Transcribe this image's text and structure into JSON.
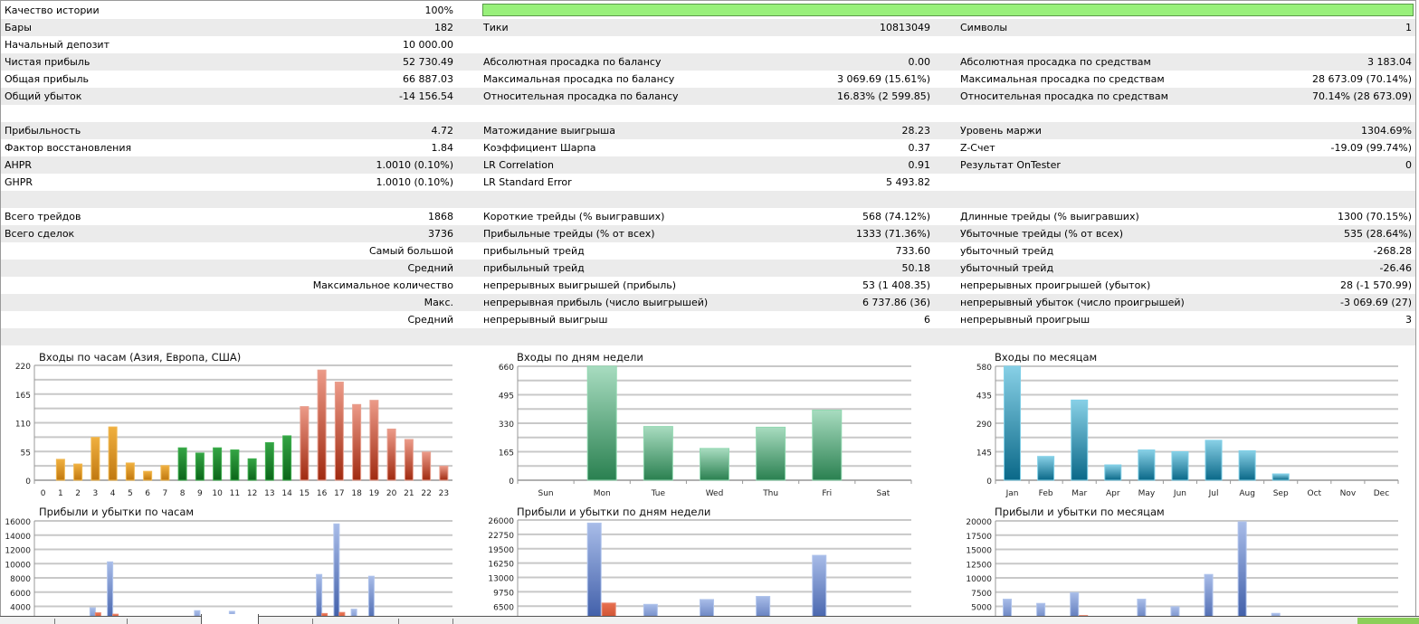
{
  "summary": {
    "history_quality_percent": 100,
    "rows": [
      {
        "l1": "Качество истории",
        "v1": "100%",
        "l2": "",
        "v2": "",
        "l3": "",
        "v3": ""
      },
      {
        "l1": "Бары",
        "v1": "182",
        "l2": "Тики",
        "v2": "10813049",
        "l3": "Символы",
        "v3": "1"
      },
      {
        "l1": "Начальный депозит",
        "v1": "10 000.00",
        "l2": "",
        "v2": "",
        "l3": "",
        "v3": ""
      },
      {
        "l1": "Чистая прибыль",
        "v1": "52 730.49",
        "l2": "Абсолютная просадка по балансу",
        "v2": "0.00",
        "l3": "Абсолютная просадка по средствам",
        "v3": "3 183.04"
      },
      {
        "l1": "Общая прибыль",
        "v1": "66 887.03",
        "l2": "Максимальная просадка по балансу",
        "v2": "3 069.69 (15.61%)",
        "l3": "Максимальная просадка по средствам",
        "v3": "28 673.09 (70.14%)"
      },
      {
        "l1": "Общий убыток",
        "v1": "-14 156.54",
        "l2": "Относительная просадка по балансу",
        "v2": "16.83% (2 599.85)",
        "l3": "Относительная просадка по средствам",
        "v3": "70.14% (28 673.09)"
      },
      {
        "l1": "",
        "v1": "",
        "l2": "",
        "v2": "",
        "l3": "",
        "v3": ""
      },
      {
        "l1": "Прибыльность",
        "v1": "4.72",
        "l2": "Матожидание выигрыша",
        "v2": "28.23",
        "l3": "Уровень маржи",
        "v3": "1304.69%"
      },
      {
        "l1": "Фактор восстановления",
        "v1": "1.84",
        "l2": "Коэффициент Шарпа",
        "v2": "0.37",
        "l3": "Z-Счет",
        "v3": "-19.09 (99.74%)"
      },
      {
        "l1": "AHPR",
        "v1": "1.0010 (0.10%)",
        "l2": "LR Correlation",
        "v2": "0.91",
        "l3": "Результат OnTester",
        "v3": "0"
      },
      {
        "l1": "GHPR",
        "v1": "1.0010 (0.10%)",
        "l2": "LR Standard Error",
        "v2": "5 493.82",
        "l3": "",
        "v3": ""
      },
      {
        "l1": "",
        "v1": "",
        "l2": "",
        "v2": "",
        "l3": "",
        "v3": ""
      },
      {
        "l1": "Всего трейдов",
        "v1": "1868",
        "l2": "Короткие трейды (% выигравших)",
        "v2": "568 (74.12%)",
        "l3": "Длинные трейды (% выигравших)",
        "v3": "1300 (70.15%)"
      },
      {
        "l1": "Всего сделок",
        "v1": "3736",
        "l2": "Прибыльные трейды (% от всех)",
        "v2": "1333 (71.36%)",
        "l3": "Убыточные трейды (% от всех)",
        "v3": "535 (28.64%)"
      },
      {
        "l1": "",
        "v1": "Самый большой",
        "l2": "прибыльный трейд",
        "v2": "733.60",
        "l3": "убыточный трейд",
        "v3": "-268.28"
      },
      {
        "l1": "",
        "v1": "Средний",
        "l2": "прибыльный трейд",
        "v2": "50.18",
        "l3": "убыточный трейд",
        "v3": "-26.46"
      },
      {
        "l1": "",
        "v1": "Максимальное количество",
        "l2": "непрерывных выигрышей (прибыль)",
        "v2": "53 (1 408.35)",
        "l3": "непрерывных проигрышей (убыток)",
        "v3": "28 (-1 570.99)"
      },
      {
        "l1": "",
        "v1": "Макс.",
        "l2": "непрерывная прибыль (число выигрышей)",
        "v2": "6 737.86 (36)",
        "l3": "непрерывный убыток (число проигрышей)",
        "v3": "-3 069.69 (27)"
      },
      {
        "l1": "",
        "v1": "Средний",
        "l2": "непрерывный выигрыш",
        "v2": "6",
        "l3": "непрерывный проигрыш",
        "v3": "3"
      },
      {
        "l1": "",
        "v1": "",
        "l2": "",
        "v2": "",
        "l3": "",
        "v3": ""
      }
    ]
  },
  "colors": {
    "quality_bar": "#98f07a",
    "profit": "#4a6ab8",
    "loss": "#c84020",
    "asia": "#e0a030",
    "europe": "#208a30",
    "usa": "#c04a30",
    "days": "#4aa070",
    "months": "#2a8aa8"
  },
  "chart_data": [
    {
      "type": "bar",
      "title": "Входы по часам (Азия, Европа, США)",
      "categories": [
        "0",
        "1",
        "2",
        "3",
        "4",
        "5",
        "6",
        "7",
        "8",
        "9",
        "10",
        "11",
        "12",
        "13",
        "14",
        "15",
        "16",
        "17",
        "18",
        "19",
        "20",
        "21",
        "22",
        "23"
      ],
      "values": [
        0,
        40,
        31,
        82,
        102,
        33,
        17,
        28,
        62,
        52,
        62,
        58,
        41,
        72,
        85,
        141,
        211,
        188,
        145,
        153,
        98,
        78,
        54,
        27
      ],
      "groups": [
        "asia",
        "asia",
        "asia",
        "asia",
        "asia",
        "asia",
        "asia",
        "asia",
        "europe",
        "europe",
        "europe",
        "europe",
        "europe",
        "europe",
        "europe",
        "usa",
        "usa",
        "usa",
        "usa",
        "usa",
        "usa",
        "usa",
        "usa",
        "usa"
      ],
      "yticks": [
        "0",
        "55",
        "110",
        "165",
        "220"
      ],
      "ylim": [
        0,
        220
      ],
      "grid": true
    },
    {
      "type": "bar",
      "title": "Входы по дням недели",
      "categories": [
        "Sun",
        "Mon",
        "Tue",
        "Wed",
        "Thu",
        "Fri",
        "Sat"
      ],
      "values": [
        0,
        660,
        311,
        184,
        307,
        406,
        0
      ],
      "yticks": [
        "0",
        "165",
        "330",
        "495",
        "660"
      ],
      "ylim": [
        0,
        660
      ],
      "grid": true
    },
    {
      "type": "bar",
      "title": "Входы по месяцам",
      "categories": [
        "Jan",
        "Feb",
        "Mar",
        "Apr",
        "May",
        "Jun",
        "Jul",
        "Aug",
        "Sep",
        "Oct",
        "Nov",
        "Dec"
      ],
      "values": [
        580,
        121,
        408,
        78,
        154,
        145,
        203,
        150,
        32,
        0,
        0,
        0
      ],
      "yticks": [
        "0",
        "145",
        "290",
        "435",
        "580"
      ],
      "ylim": [
        0,
        580
      ],
      "grid": true
    },
    {
      "type": "bar",
      "title": "Прибыли и убытки по часам",
      "categories": [
        "0",
        "1",
        "2",
        "3",
        "4",
        "5",
        "6",
        "7",
        "8",
        "9",
        "10",
        "11",
        "12",
        "13",
        "14",
        "15",
        "16",
        "17",
        "18",
        "19",
        "20",
        "21",
        "22",
        "23"
      ],
      "series": [
        {
          "values": [
            null,
            null,
            null,
            3800,
            10250,
            null,
            null,
            null,
            null,
            3400,
            null,
            3300,
            null,
            null,
            null,
            null,
            8480,
            15580,
            3600,
            8230,
            null,
            null,
            null,
            null
          ]
        },
        {
          "values": [
            null,
            null,
            null,
            3100,
            2900,
            null,
            null,
            null,
            null,
            null,
            null,
            null,
            null,
            null,
            null,
            null,
            3000,
            3150,
            null,
            null,
            null,
            null,
            null,
            null
          ]
        }
      ],
      "yticks": [
        "4000",
        "6000",
        "8000",
        "10000",
        "12000",
        "14000",
        "16000"
      ],
      "ylim": [
        0,
        16000
      ],
      "grid": true
    },
    {
      "type": "bar",
      "title": "Прибыли и убытки по дням недели",
      "categories": [
        "Sun",
        "Mon",
        "Tue",
        "Wed",
        "Thu",
        "Fri",
        "Sat"
      ],
      "series": [
        {
          "values": [
            null,
            25300,
            6900,
            8000,
            8700,
            18000,
            null
          ]
        },
        {
          "values": [
            null,
            7200,
            null,
            null,
            null,
            null,
            null
          ]
        }
      ],
      "yticks": [
        "6500",
        "9750",
        "13000",
        "16250",
        "19500",
        "22750",
        "26000"
      ],
      "ylim": [
        0,
        26000
      ],
      "grid": true
    },
    {
      "type": "bar",
      "title": "Прибыли и убытки по месяцам",
      "categories": [
        "Jan",
        "Feb",
        "Mar",
        "Apr",
        "May",
        "Jun",
        "Jul",
        "Aug",
        "Sep",
        "Oct",
        "Nov",
        "Dec"
      ],
      "series": [
        {
          "values": [
            6260,
            5520,
            7420,
            null,
            6260,
            4940,
            10600,
            19840,
            3770,
            null,
            null,
            null
          ]
        },
        {
          "values": [
            null,
            null,
            3400,
            null,
            null,
            null,
            null,
            null,
            null,
            null,
            null,
            null
          ]
        }
      ],
      "yticks": [
        "5000",
        "7500",
        "10000",
        "12500",
        "15000",
        "17500",
        "20000"
      ],
      "ylim": [
        0,
        20000
      ],
      "grid": true
    }
  ]
}
